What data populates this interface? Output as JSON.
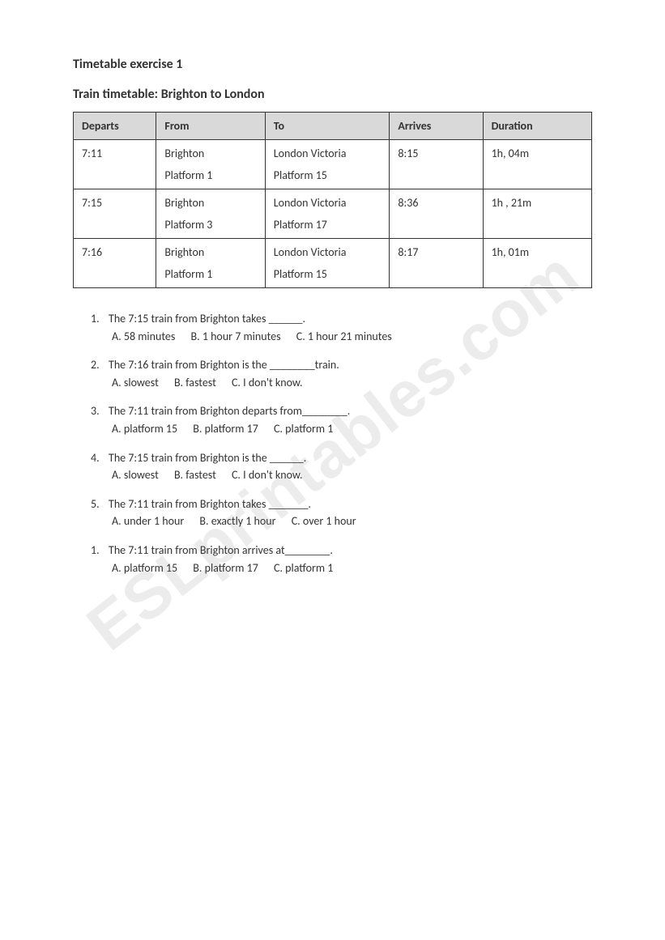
{
  "title": "Timetable exercise 1",
  "subtitle": "Train timetable: Brighton to London",
  "watermark": "ESLprintables.com",
  "table": {
    "headers": [
      "Departs",
      "From",
      "To",
      "Arrives",
      "Duration"
    ],
    "rows": [
      {
        "departs": "7:11",
        "from_line1": "Brighton",
        "from_line2": "Platform 1",
        "to_line1": "London Victoria",
        "to_line2": "Platform 15",
        "arrives": "8:15",
        "duration": "1h, 04m"
      },
      {
        "departs": "7:15",
        "from_line1": "Brighton",
        "from_line2": "Platform 3",
        "to_line1": "London Victoria",
        "to_line2": "Platform 17",
        "arrives": "8:36",
        "duration": "1h , 21m"
      },
      {
        "departs": "7:16",
        "from_line1": "Brighton",
        "from_line2": "Platform 1",
        "to_line1": "London Victoria",
        "to_line2": "Platform 15",
        "arrives": "8:17",
        "duration": "1h, 01m"
      }
    ]
  },
  "questions": [
    {
      "num": "1.",
      "text": "The 7:15 train from Brighton takes ______.",
      "opts": [
        "A.   58 minutes",
        "B.  1 hour 7 minutes",
        "C. 1 hour 21 minutes"
      ]
    },
    {
      "num": "2.",
      "text": "The 7:16 train from Brighton is the ________train.",
      "opts": [
        "A. slowest",
        "B. fastest",
        "C. I don't know."
      ]
    },
    {
      "num": "3.",
      "text": "The 7:11 train from Brighton departs from________.",
      "opts": [
        "A.    platform 15",
        "B. platform 17",
        "C. platform 1"
      ]
    },
    {
      "num": "4.",
      "text": "The 7:15 train from Brighton is the ______.",
      "opts": [
        "A.    slowest",
        "B. fastest",
        "C. I don't know."
      ]
    },
    {
      "num": "5.",
      "text": "The 7:11 train from Brighton takes _______.",
      "opts": [
        "A.   under 1 hour",
        "B.  exactly 1 hour",
        "C. over 1 hour"
      ]
    },
    {
      "num": "1.",
      "text": "The 7:11 train from Brighton arrives at________.",
      "opts": [
        "A.   platform 15",
        "B. platform 17",
        "C. platform 1"
      ]
    }
  ]
}
